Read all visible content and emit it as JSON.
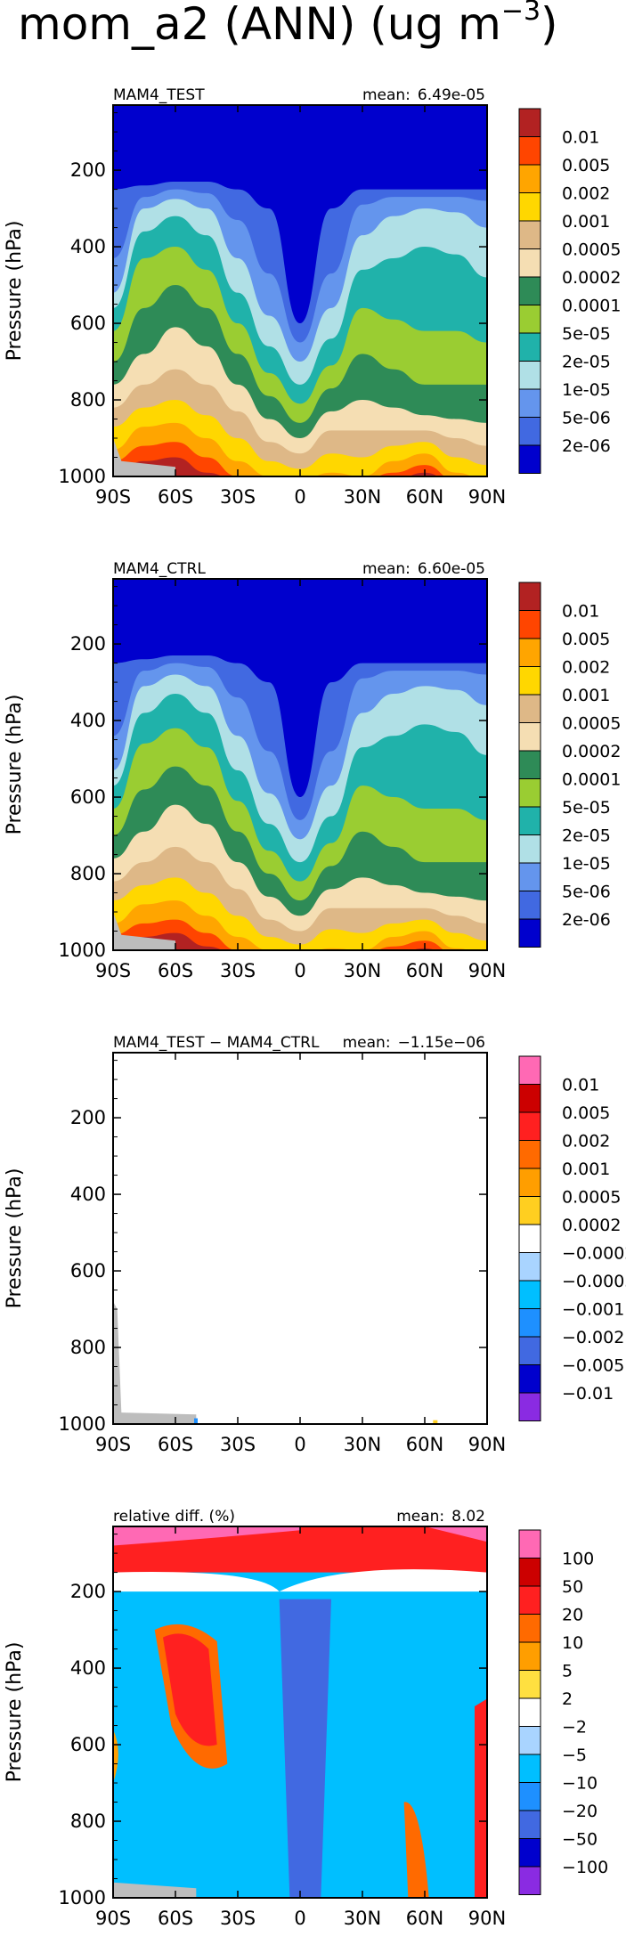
{
  "figure": {
    "title": "mom_a2 (ANN) (ug m",
    "title_exponent": "−3",
    "title_close": ")"
  },
  "chart_data": [
    {
      "type": "heatmap",
      "panel_label": "MAM4_TEST",
      "mean_label": "mean:",
      "mean_value": "6.49e-05",
      "ylabel": "Pressure (hPa)",
      "x_ticks": [
        "90S",
        "60S",
        "30S",
        "0",
        "30N",
        "60N",
        "90N"
      ],
      "y_ticks": [
        "200",
        "400",
        "600",
        "800",
        "1000"
      ],
      "xlim": [
        -90,
        90
      ],
      "ylim": [
        1000,
        30
      ],
      "legend_labels": [
        "0.01",
        "0.005",
        "0.002",
        "0.001",
        "0.0005",
        "0.0002",
        "0.0001",
        "5e-05",
        "2e-05",
        "1e-05",
        "5e-06",
        "2e-06"
      ],
      "legend_colors": [
        "#b22222",
        "#ff4500",
        "#ffa500",
        "#ffd700",
        "#deb887",
        "#f5deb3",
        "#2e8b57",
        "#9acd32",
        "#20b2aa",
        "#b0e0e6",
        "#6495ed",
        "#4169e1",
        "#0000cd"
      ],
      "fill_profile": [
        {
          "lat": -90,
          "levels": [
            250,
            430,
            520,
            560,
            620,
            700,
            760,
            820,
            870,
            930,
            960,
            990
          ]
        },
        {
          "lat": -75,
          "levels": [
            240,
            270,
            300,
            360,
            430,
            560,
            680,
            760,
            820,
            870,
            920,
            960
          ]
        },
        {
          "lat": -60,
          "levels": [
            230,
            250,
            275,
            320,
            400,
            500,
            610,
            720,
            800,
            860,
            910,
            950
          ]
        },
        {
          "lat": -45,
          "levels": [
            230,
            260,
            300,
            370,
            460,
            560,
            660,
            760,
            840,
            900,
            950,
            990
          ]
        },
        {
          "lat": -30,
          "levels": [
            250,
            330,
            430,
            520,
            600,
            680,
            760,
            830,
            900,
            960,
            1000,
            1010
          ]
        },
        {
          "lat": -15,
          "levels": [
            300,
            470,
            580,
            660,
            730,
            790,
            850,
            910,
            960,
            1000,
            1010,
            1020
          ]
        },
        {
          "lat": 0,
          "levels": [
            600,
            650,
            700,
            760,
            810,
            860,
            900,
            940,
            980,
            1010,
            1020,
            1030
          ]
        },
        {
          "lat": 15,
          "levels": [
            300,
            470,
            560,
            640,
            710,
            770,
            830,
            880,
            940,
            990,
            1010,
            1020
          ]
        },
        {
          "lat": 30,
          "levels": [
            250,
            290,
            370,
            460,
            560,
            680,
            800,
            880,
            950,
            1000,
            1010,
            1020
          ]
        },
        {
          "lat": 45,
          "levels": [
            250,
            270,
            320,
            430,
            590,
            720,
            820,
            880,
            920,
            960,
            990,
            1010
          ]
        },
        {
          "lat": 60,
          "levels": [
            250,
            270,
            300,
            400,
            620,
            760,
            840,
            880,
            910,
            940,
            970,
            990
          ]
        },
        {
          "lat": 75,
          "levels": [
            250,
            270,
            310,
            420,
            620,
            760,
            850,
            900,
            950,
            990,
            1010,
            1020
          ]
        },
        {
          "lat": 90,
          "levels": [
            250,
            280,
            350,
            480,
            650,
            760,
            860,
            920,
            970,
            1010,
            1020,
            1030
          ]
        }
      ]
    },
    {
      "type": "heatmap",
      "panel_label": "MAM4_CTRL",
      "mean_label": "mean:",
      "mean_value": "6.60e-05",
      "ylabel": "Pressure (hPa)",
      "x_ticks": [
        "90S",
        "60S",
        "30S",
        "0",
        "30N",
        "60N",
        "90N"
      ],
      "y_ticks": [
        "200",
        "400",
        "600",
        "800",
        "1000"
      ],
      "xlim": [
        -90,
        90
      ],
      "ylim": [
        1000,
        30
      ],
      "legend_labels": [
        "0.01",
        "0.005",
        "0.002",
        "0.001",
        "0.0005",
        "0.0002",
        "0.0001",
        "5e-05",
        "2e-05",
        "1e-05",
        "5e-06",
        "2e-06"
      ],
      "legend_colors": [
        "#b22222",
        "#ff4500",
        "#ffa500",
        "#ffd700",
        "#deb887",
        "#f5deb3",
        "#2e8b57",
        "#9acd32",
        "#20b2aa",
        "#b0e0e6",
        "#6495ed",
        "#4169e1",
        "#0000cd"
      ],
      "fill_profile": [
        {
          "lat": -90,
          "levels": [
            250,
            440,
            530,
            570,
            630,
            700,
            760,
            820,
            870,
            930,
            960,
            990
          ]
        },
        {
          "lat": -75,
          "levels": [
            240,
            270,
            310,
            380,
            460,
            580,
            690,
            770,
            830,
            880,
            930,
            965
          ]
        },
        {
          "lat": -60,
          "levels": [
            230,
            250,
            280,
            330,
            420,
            520,
            620,
            730,
            810,
            870,
            920,
            955
          ]
        },
        {
          "lat": -45,
          "levels": [
            230,
            260,
            310,
            380,
            470,
            570,
            670,
            770,
            850,
            910,
            955,
            990
          ]
        },
        {
          "lat": -30,
          "levels": [
            250,
            340,
            440,
            530,
            610,
            690,
            770,
            840,
            910,
            965,
            1000,
            1010
          ]
        },
        {
          "lat": -15,
          "levels": [
            300,
            480,
            590,
            670,
            740,
            800,
            860,
            920,
            965,
            1000,
            1010,
            1020
          ]
        },
        {
          "lat": 0,
          "levels": [
            600,
            660,
            710,
            770,
            820,
            870,
            910,
            950,
            985,
            1010,
            1020,
            1030
          ]
        },
        {
          "lat": 15,
          "levels": [
            300,
            480,
            570,
            650,
            720,
            780,
            840,
            890,
            945,
            995,
            1010,
            1020
          ]
        },
        {
          "lat": 30,
          "levels": [
            250,
            290,
            380,
            470,
            570,
            690,
            810,
            890,
            955,
            1000,
            1010,
            1020
          ]
        },
        {
          "lat": 45,
          "levels": [
            250,
            270,
            330,
            440,
            600,
            730,
            830,
            890,
            930,
            965,
            990,
            1010
          ]
        },
        {
          "lat": 60,
          "levels": [
            250,
            270,
            310,
            410,
            630,
            770,
            850,
            890,
            920,
            950,
            975,
            995
          ]
        },
        {
          "lat": 75,
          "levels": [
            250,
            270,
            320,
            430,
            630,
            770,
            860,
            910,
            955,
            995,
            1010,
            1020
          ]
        },
        {
          "lat": 90,
          "levels": [
            250,
            280,
            360,
            490,
            660,
            770,
            870,
            930,
            975,
            1010,
            1020,
            1030
          ]
        }
      ]
    },
    {
      "type": "heatmap",
      "panel_label": "MAM4_TEST − MAM4_CTRL",
      "mean_label": "mean:",
      "mean_value": "−1.15e−06",
      "ylabel": "Pressure (hPa)",
      "x_ticks": [
        "90S",
        "60S",
        "30S",
        "0",
        "30N",
        "60N",
        "90N"
      ],
      "y_ticks": [
        "200",
        "400",
        "600",
        "800",
        "1000"
      ],
      "xlim": [
        -90,
        90
      ],
      "ylim": [
        1000,
        30
      ],
      "legend_labels": [
        "0.01",
        "0.005",
        "0.002",
        "0.001",
        "0.0005",
        "0.0002",
        "−0.0002",
        "−0.0005",
        "−0.001",
        "−0.002",
        "−0.005",
        "−0.01"
      ],
      "legend_colors": [
        "#ff69b4",
        "#cc0000",
        "#ff2020",
        "#ff6a00",
        "#ff9e00",
        "#ffcf20",
        "#ffffff",
        "#a9d4ff",
        "#00bfff",
        "#1e90ff",
        "#4169e1",
        "#0000cd",
        "#8a2be2"
      ]
    },
    {
      "type": "heatmap",
      "panel_label": "relative diff. (%)",
      "mean_label": "mean:",
      "mean_value": "8.02",
      "ylabel": "Pressure (hPa)",
      "x_ticks": [
        "90S",
        "60S",
        "30S",
        "0",
        "30N",
        "60N",
        "90N"
      ],
      "y_ticks": [
        "200",
        "400",
        "600",
        "800",
        "1000"
      ],
      "xlim": [
        -90,
        90
      ],
      "ylim": [
        1000,
        30
      ],
      "legend_labels": [
        "100",
        "50",
        "20",
        "10",
        "5",
        "2",
        "−2",
        "−5",
        "−10",
        "−20",
        "−50",
        "−100"
      ],
      "legend_colors": [
        "#ff69b4",
        "#cc0000",
        "#ff2020",
        "#ff6a00",
        "#ff9e00",
        "#ffe040",
        "#ffffff",
        "#a9d4ff",
        "#00bfff",
        "#1e90ff",
        "#4169e1",
        "#0000cd",
        "#8a2be2"
      ]
    }
  ]
}
